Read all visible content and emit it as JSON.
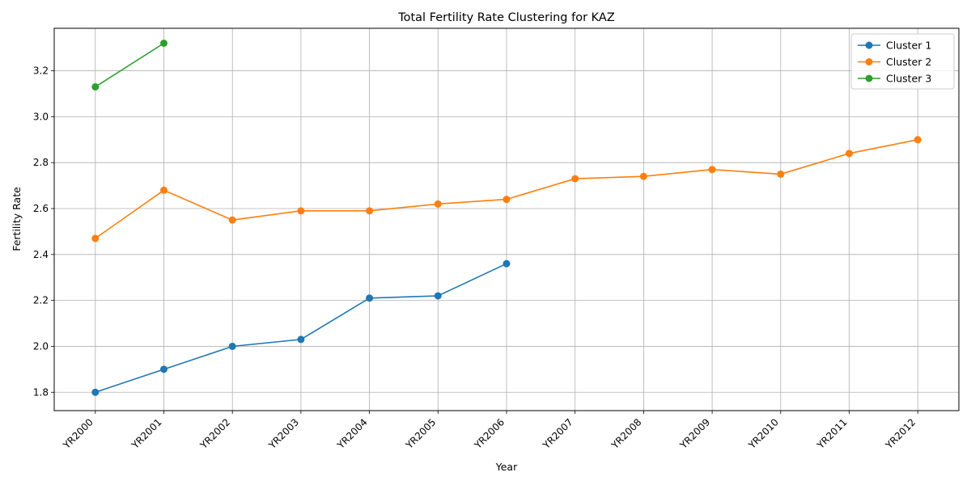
{
  "chart_data": {
    "type": "line",
    "title": "Total Fertility Rate Clustering for KAZ",
    "xlabel": "Year",
    "ylabel": "Fertility Rate",
    "categories": [
      "YR2000",
      "YR2001",
      "YR2002",
      "YR2003",
      "YR2004",
      "YR2005",
      "YR2006",
      "YR2007",
      "YR2008",
      "YR2009",
      "YR2010",
      "YR2011",
      "YR2012"
    ],
    "ylim": [
      1.72,
      3.385
    ],
    "yticks": [
      "1.8",
      "2.0",
      "2.2",
      "2.4",
      "2.6",
      "2.8",
      "3.0",
      "3.2"
    ],
    "grid": true,
    "legend_position": "top-right",
    "series": [
      {
        "name": "Cluster 1",
        "color": "#1f77b4",
        "values": [
          1.8,
          1.9,
          2.0,
          2.03,
          2.21,
          2.22,
          2.36,
          null,
          null,
          null,
          null,
          null,
          null
        ]
      },
      {
        "name": "Cluster 2",
        "color": "#ff7f0e",
        "values": [
          2.47,
          2.68,
          2.55,
          2.59,
          2.59,
          2.62,
          2.64,
          2.73,
          2.74,
          2.77,
          2.75,
          2.84,
          2.9
        ]
      },
      {
        "name": "Cluster 3",
        "color": "#2ca02c",
        "values": [
          3.13,
          3.32,
          null,
          null,
          null,
          null,
          null,
          null,
          null,
          null,
          null,
          null,
          null
        ]
      }
    ]
  }
}
